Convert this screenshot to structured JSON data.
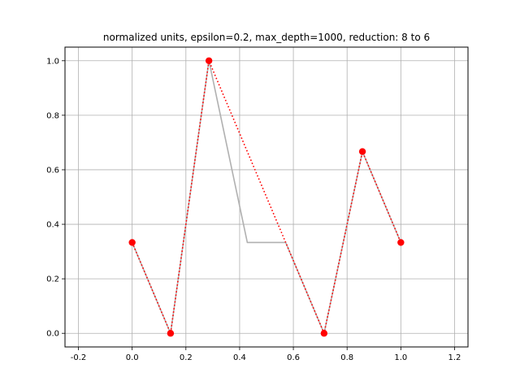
{
  "chart_data": {
    "type": "line",
    "title": "normalized units, epsilon=0.2, max_depth=1000, reduction: 8 to 6",
    "xlabel": "",
    "ylabel": "",
    "xlim": [
      -0.25,
      1.25
    ],
    "ylim": [
      -0.05,
      1.05
    ],
    "grid": true,
    "xticks": [
      "-0.2",
      "0.0",
      "0.2",
      "0.4",
      "0.6",
      "0.8",
      "1.0",
      "1.2"
    ],
    "xtick_values": [
      -0.2,
      0.0,
      0.2,
      0.4,
      0.6,
      0.8,
      1.0,
      1.2
    ],
    "yticks": [
      "0.0",
      "0.2",
      "0.4",
      "0.6",
      "0.8",
      "1.0"
    ],
    "ytick_values": [
      0.0,
      0.2,
      0.4,
      0.6,
      0.8,
      1.0
    ],
    "series": [
      {
        "style": "solid",
        "color": "#b0b0b0",
        "x": [
          0.0,
          0.1429,
          0.2857,
          0.4286,
          0.5714,
          0.7143,
          0.8571,
          1.0
        ],
        "y": [
          0.3333,
          0.0,
          1.0,
          0.3333,
          0.3333,
          0.0,
          0.6667,
          0.3333
        ]
      },
      {
        "style": "dotted-with-markers",
        "color": "#ff0000",
        "x": [
          0.0,
          0.1429,
          0.2857,
          0.7143,
          0.8571,
          1.0
        ],
        "y": [
          0.3333,
          0.0,
          1.0,
          0.0,
          0.6667,
          0.3333
        ]
      }
    ]
  },
  "colors": {
    "grid": "#b0b0b0",
    "axes": "#000000",
    "original_line": "#b0b0b0",
    "simplified_line": "#ff0000"
  }
}
